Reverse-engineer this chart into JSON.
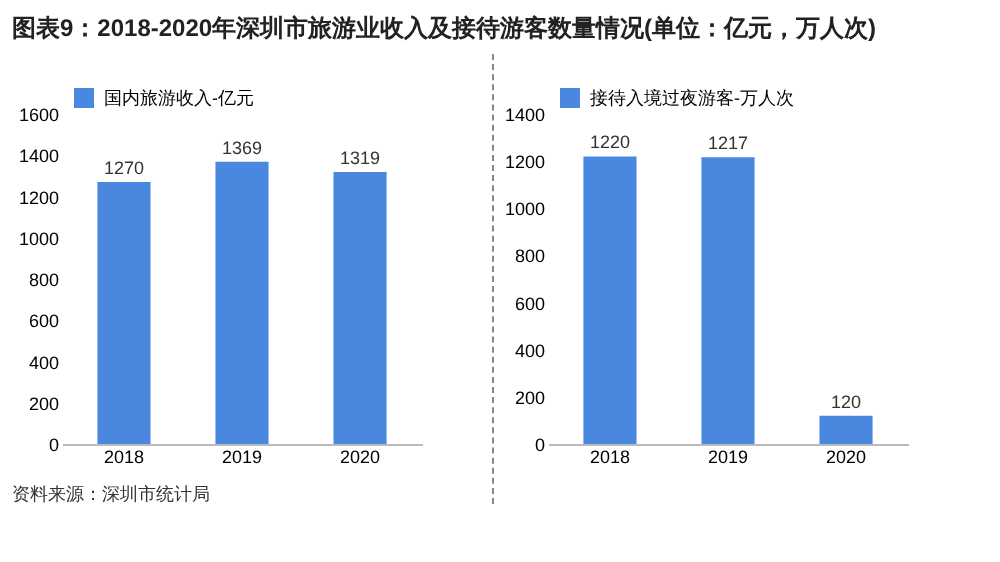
{
  "chart_data": [
    {
      "type": "bar",
      "title": "图表9：2018-2020年深圳市旅游业收入及接待游客数量情况(单位：亿元，万人次)",
      "categories": [
        "2018",
        "2019",
        "2020"
      ],
      "series": [
        {
          "name": "国内旅游收入-亿元",
          "color": "#4a88e0",
          "values": [
            1270,
            1369,
            1319
          ]
        }
      ],
      "ylim": [
        0,
        1600
      ],
      "yticks": [
        0,
        200,
        400,
        600,
        800,
        1000,
        1200,
        1400,
        1600
      ],
      "data_labels": true,
      "legend": "top left",
      "grid": false,
      "annotations": [
        "资料来源：深圳市统计局"
      ]
    },
    {
      "type": "bar",
      "categories": [
        "2018",
        "2019",
        "2020"
      ],
      "series": [
        {
          "name": "接待入境过夜游客-万人次",
          "color": "#4a88e0",
          "values": [
            1220,
            1217,
            120
          ]
        }
      ],
      "ylim": [
        0,
        1400
      ],
      "yticks": [
        0,
        200,
        400,
        600,
        800,
        1000,
        1200,
        1400
      ],
      "data_labels": true,
      "legend": "top left",
      "grid": false
    }
  ]
}
